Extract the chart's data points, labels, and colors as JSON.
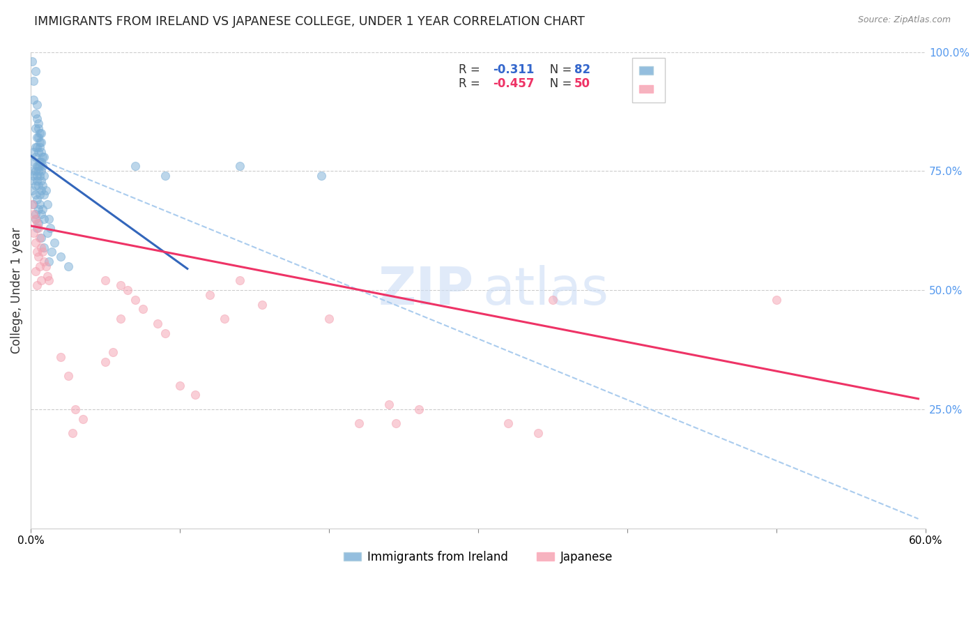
{
  "title": "IMMIGRANTS FROM IRELAND VS JAPANESE COLLEGE, UNDER 1 YEAR CORRELATION CHART",
  "source": "Source: ZipAtlas.com",
  "ylabel": "College, Under 1 year",
  "xlim": [
    0.0,
    0.6
  ],
  "ylim": [
    0.0,
    1.0
  ],
  "xticks": [
    0.0,
    0.1,
    0.2,
    0.3,
    0.4,
    0.5,
    0.6
  ],
  "xticklabels": [
    "0.0%",
    "",
    "",
    "",
    "",
    "",
    "60.0%"
  ],
  "yticks_right": [
    0.25,
    0.5,
    0.75,
    1.0
  ],
  "yticklabels_right": [
    "25.0%",
    "50.0%",
    "75.0%",
    "100.0%"
  ],
  "legend_label_blue": "Immigrants from Ireland",
  "legend_label_pink": "Japanese",
  "blue_color": "#7aaed6",
  "pink_color": "#f4a0b0",
  "blue_line_color": "#3366bb",
  "pink_line_color": "#ee3366",
  "dashed_line_color": "#aaccee",
  "watermark_zip": "ZIP",
  "watermark_atlas": "atlas",
  "blue_scatter": [
    [
      0.001,
      0.98
    ],
    [
      0.003,
      0.96
    ],
    [
      0.002,
      0.94
    ],
    [
      0.002,
      0.9
    ],
    [
      0.004,
      0.89
    ],
    [
      0.003,
      0.87
    ],
    [
      0.004,
      0.86
    ],
    [
      0.005,
      0.85
    ],
    [
      0.003,
      0.84
    ],
    [
      0.005,
      0.84
    ],
    [
      0.006,
      0.83
    ],
    [
      0.007,
      0.83
    ],
    [
      0.004,
      0.82
    ],
    [
      0.005,
      0.82
    ],
    [
      0.006,
      0.81
    ],
    [
      0.007,
      0.81
    ],
    [
      0.003,
      0.8
    ],
    [
      0.004,
      0.8
    ],
    [
      0.006,
      0.8
    ],
    [
      0.007,
      0.79
    ],
    [
      0.002,
      0.79
    ],
    [
      0.005,
      0.79
    ],
    [
      0.008,
      0.78
    ],
    [
      0.009,
      0.78
    ],
    [
      0.003,
      0.78
    ],
    [
      0.006,
      0.77
    ],
    [
      0.002,
      0.77
    ],
    [
      0.007,
      0.77
    ],
    [
      0.004,
      0.76
    ],
    [
      0.006,
      0.76
    ],
    [
      0.005,
      0.76
    ],
    [
      0.008,
      0.76
    ],
    [
      0.001,
      0.75
    ],
    [
      0.003,
      0.75
    ],
    [
      0.005,
      0.75
    ],
    [
      0.007,
      0.75
    ],
    [
      0.009,
      0.74
    ],
    [
      0.004,
      0.74
    ],
    [
      0.006,
      0.74
    ],
    [
      0.002,
      0.74
    ],
    [
      0.001,
      0.73
    ],
    [
      0.004,
      0.73
    ],
    [
      0.007,
      0.73
    ],
    [
      0.008,
      0.72
    ],
    [
      0.003,
      0.72
    ],
    [
      0.005,
      0.72
    ],
    [
      0.01,
      0.71
    ],
    [
      0.001,
      0.71
    ],
    [
      0.007,
      0.71
    ],
    [
      0.003,
      0.7
    ],
    [
      0.006,
      0.7
    ],
    [
      0.009,
      0.7
    ],
    [
      0.004,
      0.69
    ],
    [
      0.002,
      0.68
    ],
    [
      0.006,
      0.68
    ],
    [
      0.011,
      0.68
    ],
    [
      0.008,
      0.67
    ],
    [
      0.005,
      0.67
    ],
    [
      0.003,
      0.66
    ],
    [
      0.007,
      0.66
    ],
    [
      0.012,
      0.65
    ],
    [
      0.003,
      0.65
    ],
    [
      0.009,
      0.65
    ],
    [
      0.005,
      0.64
    ],
    [
      0.013,
      0.63
    ],
    [
      0.004,
      0.63
    ],
    [
      0.011,
      0.62
    ],
    [
      0.007,
      0.61
    ],
    [
      0.016,
      0.6
    ],
    [
      0.009,
      0.59
    ],
    [
      0.014,
      0.58
    ],
    [
      0.02,
      0.57
    ],
    [
      0.012,
      0.56
    ],
    [
      0.025,
      0.55
    ],
    [
      0.07,
      0.76
    ],
    [
      0.09,
      0.74
    ],
    [
      0.14,
      0.76
    ],
    [
      0.195,
      0.74
    ]
  ],
  "pink_scatter": [
    [
      0.001,
      0.68
    ],
    [
      0.002,
      0.66
    ],
    [
      0.003,
      0.65
    ],
    [
      0.004,
      0.64
    ],
    [
      0.005,
      0.63
    ],
    [
      0.002,
      0.62
    ],
    [
      0.006,
      0.61
    ],
    [
      0.003,
      0.6
    ],
    [
      0.007,
      0.59
    ],
    [
      0.004,
      0.58
    ],
    [
      0.008,
      0.58
    ],
    [
      0.005,
      0.57
    ],
    [
      0.009,
      0.56
    ],
    [
      0.006,
      0.55
    ],
    [
      0.01,
      0.55
    ],
    [
      0.003,
      0.54
    ],
    [
      0.011,
      0.53
    ],
    [
      0.007,
      0.52
    ],
    [
      0.012,
      0.52
    ],
    [
      0.004,
      0.51
    ],
    [
      0.05,
      0.52
    ],
    [
      0.06,
      0.51
    ],
    [
      0.065,
      0.5
    ],
    [
      0.07,
      0.48
    ],
    [
      0.075,
      0.46
    ],
    [
      0.06,
      0.44
    ],
    [
      0.085,
      0.43
    ],
    [
      0.09,
      0.41
    ],
    [
      0.02,
      0.36
    ],
    [
      0.025,
      0.32
    ],
    [
      0.1,
      0.3
    ],
    [
      0.11,
      0.28
    ],
    [
      0.14,
      0.52
    ],
    [
      0.12,
      0.49
    ],
    [
      0.155,
      0.47
    ],
    [
      0.13,
      0.44
    ],
    [
      0.2,
      0.44
    ],
    [
      0.22,
      0.22
    ],
    [
      0.245,
      0.22
    ],
    [
      0.32,
      0.22
    ],
    [
      0.34,
      0.2
    ],
    [
      0.35,
      0.48
    ],
    [
      0.24,
      0.26
    ],
    [
      0.26,
      0.25
    ],
    [
      0.03,
      0.25
    ],
    [
      0.035,
      0.23
    ],
    [
      0.028,
      0.2
    ],
    [
      0.055,
      0.37
    ],
    [
      0.05,
      0.35
    ],
    [
      0.5,
      0.48
    ]
  ],
  "blue_line": [
    [
      0.0,
      0.782
    ],
    [
      0.105,
      0.545
    ]
  ],
  "pink_line": [
    [
      0.0,
      0.635
    ],
    [
      0.595,
      0.272
    ]
  ],
  "dashed_line": [
    [
      0.0,
      0.782
    ],
    [
      0.595,
      0.02
    ]
  ]
}
